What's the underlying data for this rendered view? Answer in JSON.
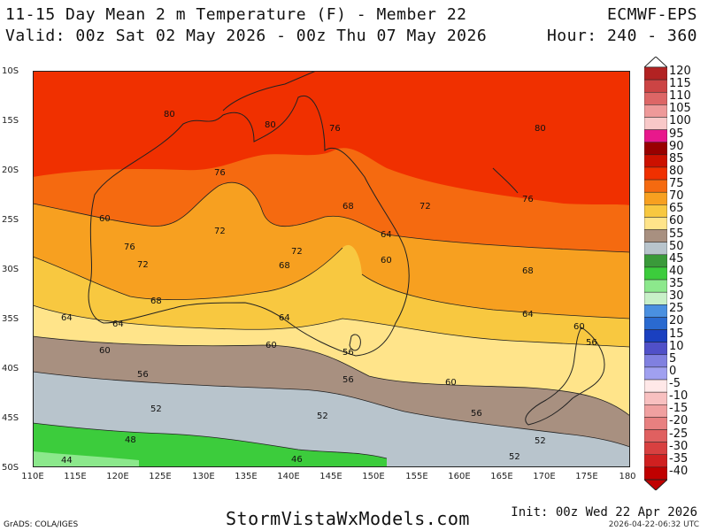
{
  "header": {
    "title_line1": "11-15 Day Mean 2 m Temperature (F) - Member 22",
    "title_line2": "Valid: 00z Sat 02 May 2026 - 00z Thu 07 May 2026",
    "model": "ECMWF-EPS",
    "hours": "Hour: 240 - 360"
  },
  "axes": {
    "lat_labels": [
      "10S",
      "15S",
      "20S",
      "25S",
      "30S",
      "35S",
      "40S",
      "45S",
      "50S"
    ],
    "lon_labels": [
      "110E",
      "115E",
      "120E",
      "125E",
      "130E",
      "135E",
      "140E",
      "145E",
      "150E",
      "155E",
      "160E",
      "165E",
      "170E",
      "175E",
      "180"
    ]
  },
  "colorbar": {
    "labels": [
      "120",
      "115",
      "110",
      "105",
      "100",
      "95",
      "90",
      "85",
      "80",
      "75",
      "70",
      "65",
      "60",
      "55",
      "50",
      "45",
      "40",
      "35",
      "30",
      "25",
      "20",
      "15",
      "10",
      "5",
      "0",
      "-5",
      "-10",
      "-15",
      "-20",
      "-25",
      "-30",
      "-35",
      "-40"
    ],
    "colors": [
      "#b22222",
      "#cc4444",
      "#dd6666",
      "#ee9999",
      "#f8c8c8",
      "#e8188c",
      "#990000",
      "#cc1100",
      "#f03000",
      "#f56a10",
      "#f7a020",
      "#f8c840",
      "#ffe48a",
      "#a89080",
      "#b8c4cc",
      "#3a9a3a",
      "#3ccc3c",
      "#8ce88c",
      "#c8f0c8",
      "#4a90e0",
      "#2a6ad0",
      "#1a40c0",
      "#5050c8",
      "#8080e0",
      "#a0a0f0",
      "#ffe8e8",
      "#f8c0c0",
      "#f0a0a0",
      "#e88080",
      "#e06060",
      "#d84040",
      "#d02020",
      "#c00000"
    ]
  },
  "contour_labels": [
    {
      "text": "80"
    },
    {
      "text": "80"
    },
    {
      "text": "76"
    },
    {
      "text": "80"
    },
    {
      "text": "76"
    },
    {
      "text": "72"
    },
    {
      "text": "68"
    },
    {
      "text": "72"
    },
    {
      "text": "76"
    },
    {
      "text": "60"
    },
    {
      "text": "76"
    },
    {
      "text": "72"
    },
    {
      "text": "72"
    },
    {
      "text": "68"
    },
    {
      "text": "64"
    },
    {
      "text": "68"
    },
    {
      "text": "60"
    },
    {
      "text": "68"
    },
    {
      "text": "64"
    },
    {
      "text": "64"
    },
    {
      "text": "64"
    },
    {
      "text": "60"
    },
    {
      "text": "64"
    },
    {
      "text": "60"
    },
    {
      "text": "56"
    },
    {
      "text": "60"
    },
    {
      "text": "56"
    },
    {
      "text": "56"
    },
    {
      "text": "56"
    },
    {
      "text": "60"
    },
    {
      "text": "52"
    },
    {
      "text": "52"
    },
    {
      "text": "56"
    },
    {
      "text": "52"
    },
    {
      "text": "48"
    },
    {
      "text": "44"
    },
    {
      "text": "46"
    },
    {
      "text": "52"
    }
  ],
  "footer": {
    "grads": "GrADS: COLA/IGES",
    "site": "StormVistaWxModels.com",
    "init": "Init: 00z Wed 22 Apr 2026",
    "stamp": "2026-04-22-06:32 UTC"
  }
}
